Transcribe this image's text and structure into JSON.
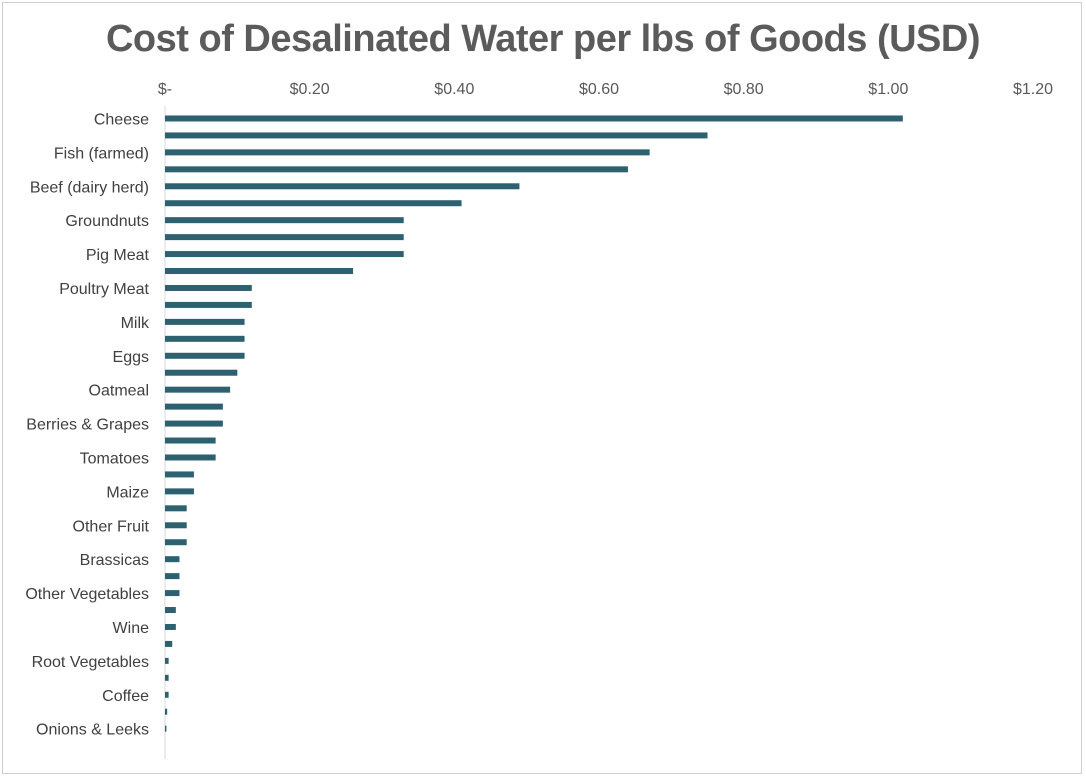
{
  "chart_data": {
    "type": "bar",
    "orientation": "horizontal",
    "title": "Cost of Desalinated Water per lbs of Goods (USD)",
    "xlim": [
      0,
      1.2
    ],
    "x_ticks": [
      0,
      0.2,
      0.4,
      0.6,
      0.8,
      1.0,
      1.2
    ],
    "x_tick_labels": [
      "$-",
      "$0.20",
      "$0.40",
      "$0.60",
      "$0.80",
      "$1.00",
      "$1.20"
    ],
    "grid": false,
    "legend": "none",
    "bar_color": "#2e6170",
    "categories": [
      "Cheese",
      "",
      "Fish (farmed)",
      "",
      "Beef (dairy herd)",
      "",
      "Groundnuts",
      "",
      "Pig Meat",
      "",
      "Poultry Meat",
      "",
      "Milk",
      "",
      "Eggs",
      "",
      "Oatmeal",
      "",
      "Berries & Grapes",
      "",
      "Tomatoes",
      "",
      "Maize",
      "",
      "Other Fruit",
      "",
      "Brassicas",
      "",
      "Other Vegetables",
      "",
      "Wine",
      "",
      "Root Vegetables",
      "",
      "Coffee",
      "",
      "Onions & Leeks"
    ],
    "values": [
      1.02,
      0.75,
      0.67,
      0.64,
      0.49,
      0.41,
      0.33,
      0.33,
      0.33,
      0.26,
      0.12,
      0.12,
      0.11,
      0.11,
      0.11,
      0.1,
      0.09,
      0.08,
      0.08,
      0.07,
      0.07,
      0.04,
      0.04,
      0.03,
      0.03,
      0.03,
      0.02,
      0.02,
      0.02,
      0.015,
      0.015,
      0.01,
      0.005,
      0.005,
      0.005,
      0.003,
      0.002
    ]
  }
}
